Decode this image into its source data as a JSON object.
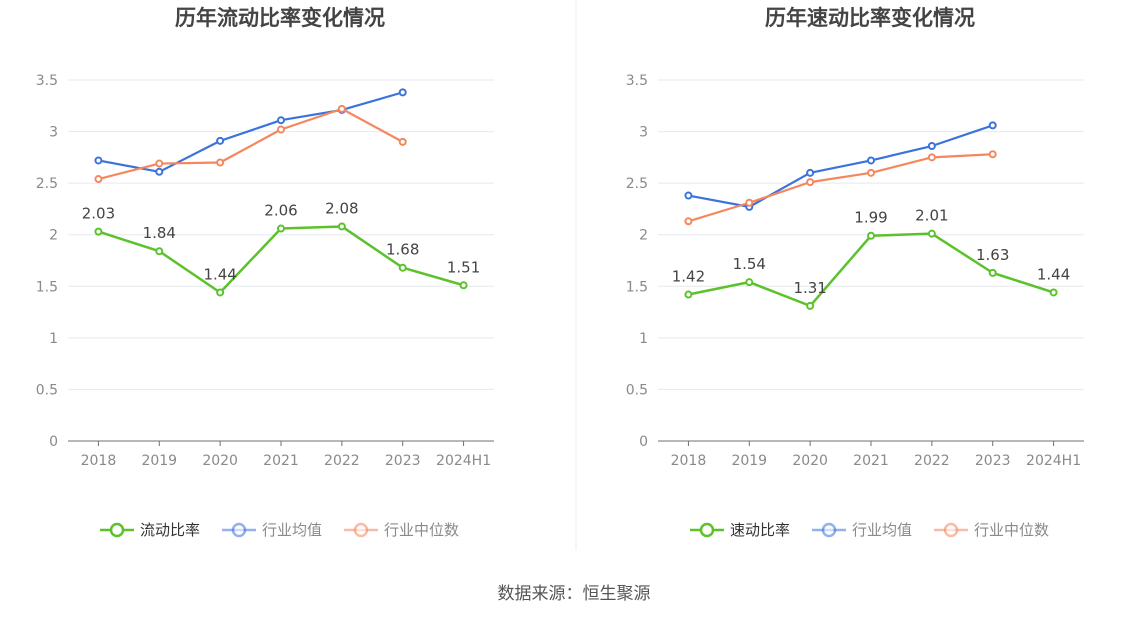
{
  "colors": {
    "current_series": "#5cc22c",
    "industry_avg": "#3b73dd",
    "industry_median": "#f5875f",
    "grid": "#e6e8ef",
    "axis": "#6e7079",
    "tick_text": "#8a8a8a",
    "title_text": "#444444",
    "divider": "#ececec"
  },
  "source": "数据来源：恒生聚源",
  "chart_data": [
    {
      "type": "line",
      "title": "历年流动比率变化情况",
      "categories": [
        "2018",
        "2019",
        "2020",
        "2021",
        "2022",
        "2023",
        "2024H1"
      ],
      "ylim": [
        0,
        3.5
      ],
      "yticks": [
        "0",
        "0.5",
        "1",
        "1.5",
        "2",
        "2.5",
        "3",
        "3.5"
      ],
      "grid": true,
      "legend_position": "bottom",
      "series": [
        {
          "name": "流动比率",
          "values": [
            2.03,
            1.84,
            1.44,
            2.06,
            2.08,
            1.68,
            1.51
          ],
          "labels": [
            "2.03",
            "1.84",
            "1.44",
            "2.06",
            "2.08",
            "1.68",
            "1.51"
          ],
          "color_key": "current_series"
        },
        {
          "name": "行业均值",
          "values": [
            2.72,
            2.61,
            2.91,
            3.11,
            3.21,
            3.38,
            null
          ],
          "color_key": "industry_avg"
        },
        {
          "name": "行业中位数",
          "values": [
            2.54,
            2.69,
            2.7,
            3.02,
            3.22,
            2.9,
            null
          ],
          "color_key": "industry_median"
        }
      ]
    },
    {
      "type": "line",
      "title": "历年速动比率变化情况",
      "categories": [
        "2018",
        "2019",
        "2020",
        "2021",
        "2022",
        "2023",
        "2024H1"
      ],
      "ylim": [
        0,
        3.5
      ],
      "yticks": [
        "0",
        "0.5",
        "1",
        "1.5",
        "2",
        "2.5",
        "3",
        "3.5"
      ],
      "grid": true,
      "legend_position": "bottom",
      "series": [
        {
          "name": "速动比率",
          "values": [
            1.42,
            1.54,
            1.31,
            1.99,
            2.01,
            1.63,
            1.44
          ],
          "labels": [
            "1.42",
            "1.54",
            "1.31",
            "1.99",
            "2.01",
            "1.63",
            "1.44"
          ],
          "color_key": "current_series"
        },
        {
          "name": "行业均值",
          "values": [
            2.38,
            2.27,
            2.6,
            2.72,
            2.86,
            3.06,
            null
          ],
          "color_key": "industry_avg"
        },
        {
          "name": "行业中位数",
          "values": [
            2.13,
            2.31,
            2.51,
            2.6,
            2.75,
            2.78,
            null
          ],
          "color_key": "industry_median"
        }
      ]
    }
  ]
}
